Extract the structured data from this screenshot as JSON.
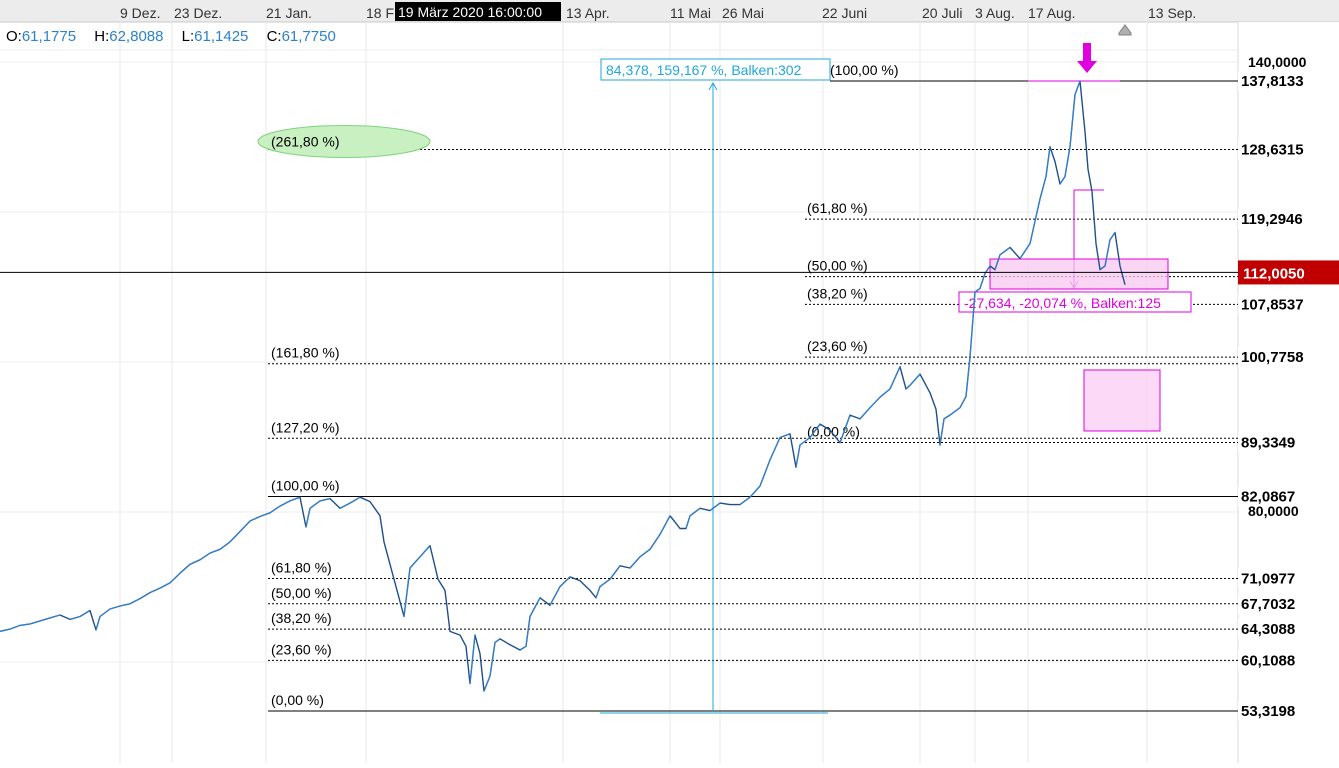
{
  "ohlc": {
    "o_label": "O:",
    "o_value": "61,1775",
    "h_label": "H:",
    "h_value": "62,8088",
    "l_label": "L:",
    "l_value": "61,1425",
    "c_label": "C:",
    "c_value": "61,7750"
  },
  "crosshair_label": "19 März 2020 16:00:00",
  "colors": {
    "price": "#1f4f8b",
    "price_up": "#2f86d6",
    "fib_magenta": "#e000e0",
    "measure_cyan": "#20a8d8",
    "last_price_bg": "#c00000",
    "ellipse_green": "#7fd37f"
  },
  "chart_data": {
    "type": "line",
    "title": "",
    "xlabel": "",
    "ylabel": "",
    "x_ticks": [
      "9 Dez.",
      "23 Dez.",
      "21 Jan.",
      "18 F",
      "13 Apr.",
      "11 Mai",
      "26 Mai",
      "22 Juni",
      "20 Juli",
      "3 Aug.",
      "17 Aug.",
      "13 Sep."
    ],
    "y_ticks": [
      "140,0000",
      "80,0000"
    ],
    "ylim": [
      50,
      142
    ],
    "grid": true,
    "last_price": "112,0050",
    "price_labels": [
      "137,8133",
      "128,6315",
      "119,2946",
      "107,8537",
      "100,7758",
      "89,3349",
      "82,0867",
      "71,0977",
      "67,7032",
      "64,3088",
      "60,1088",
      "53,3198"
    ],
    "fib_retracement_1": {
      "label_levels": [
        {
          "label": "(0,00 %)",
          "price": 53.3198
        },
        {
          "label": "(23,60 %)",
          "price": 60.1088
        },
        {
          "label": "(38,20 %)",
          "price": 64.3088
        },
        {
          "label": "(50,00 %)",
          "price": 67.7032
        },
        {
          "label": "(61,80 %)",
          "price": 71.0977
        },
        {
          "label": "(100,00 %)",
          "price": 82.0867
        },
        {
          "label": "(127,20 %)",
          "price": 89.9
        },
        {
          "label": "(161,80 %)",
          "price": 99.9
        },
        {
          "label": "(261,80 %)",
          "price": 128.6315
        }
      ]
    },
    "fib_retracement_2": {
      "label_levels": [
        {
          "label": "(0,00 %)",
          "price": 89.3349
        },
        {
          "label": "(23,60 %)",
          "price": 100.7758
        },
        {
          "label": "(38,20 %)",
          "price": 107.8537
        },
        {
          "label": "(50,00 %)",
          "price": 111.5741
        },
        {
          "label": "(61,80 %)",
          "price": 119.2946
        },
        {
          "label": "(100,00 %)",
          "price": 137.8133
        }
      ]
    },
    "measure_up": "84,378, 159,167 %, Balken:302",
    "measure_down": "-27,634, -20,074 %, Balken:125",
    "series": [
      {
        "x": [
          0,
          10,
          20,
          30,
          40,
          50,
          60,
          70,
          80,
          90,
          96,
          100,
          110,
          120,
          130,
          140,
          150,
          160,
          170,
          180,
          190,
          200,
          210,
          220,
          230,
          240,
          250,
          260,
          270,
          280,
          290,
          300,
          306,
          310,
          320,
          330,
          340,
          350,
          360,
          370,
          380,
          384,
          390,
          398,
          404,
          410,
          420,
          430,
          438,
          445,
          450,
          460,
          466,
          470,
          475,
          480,
          484,
          490,
          495,
          500,
          510,
          520,
          526,
          530,
          540,
          550,
          560,
          570,
          580,
          590,
          596,
          600,
          610,
          620,
          630,
          640,
          650,
          660,
          670,
          676,
          680,
          686,
          690,
          700,
          710,
          720,
          730,
          740,
          750,
          760,
          770,
          780,
          790,
          796,
          800,
          810,
          820,
          830,
          840,
          850,
          860,
          870,
          880,
          890,
          900,
          906,
          910,
          920,
          930,
          936,
          940,
          944,
          950,
          960,
          966,
          970,
          975,
          980,
          985,
          990,
          995,
          1000,
          1010,
          1020,
          1030,
          1040,
          1046,
          1050,
          1055,
          1060,
          1065,
          1070,
          1075,
          1080,
          1085,
          1088,
          1092,
          1096,
          1100,
          1105,
          1110,
          1115,
          1120,
          1125
        ],
        "y": [
          64.0,
          64.3,
          64.8,
          65.0,
          65.4,
          65.8,
          66.2,
          65.6,
          66.0,
          66.8,
          64.2,
          66.0,
          67.0,
          67.4,
          67.7,
          68.4,
          69.2,
          69.8,
          70.5,
          71.8,
          73.0,
          73.6,
          74.5,
          75.0,
          76.0,
          77.4,
          78.8,
          79.4,
          79.9,
          80.8,
          81.5,
          82.0,
          78.0,
          80.5,
          81.5,
          81.8,
          80.5,
          81.2,
          82.0,
          81.4,
          79.5,
          76.0,
          73.0,
          69.0,
          66.0,
          72.5,
          74.0,
          75.5,
          71.0,
          69.5,
          64.0,
          63.5,
          62.0,
          57.0,
          63.5,
          61.0,
          56.0,
          58.0,
          62.5,
          63.0,
          62.2,
          61.5,
          62.0,
          66.0,
          68.5,
          67.5,
          70.0,
          71.3,
          70.8,
          69.5,
          68.5,
          70.0,
          71.0,
          72.8,
          72.5,
          74.0,
          75.0,
          77.0,
          79.5,
          78.5,
          77.8,
          77.8,
          79.5,
          80.5,
          80.2,
          81.2,
          81.0,
          81.0,
          82.0,
          83.5,
          87.0,
          90.0,
          90.5,
          86.0,
          89.0,
          90.0,
          91.8,
          91.0,
          89.3,
          93.0,
          92.5,
          94.0,
          95.4,
          96.5,
          99.5,
          96.5,
          97.0,
          98.5,
          96.0,
          93.8,
          89.0,
          92.5,
          93.0,
          94.0,
          95.5,
          100.8,
          109.5,
          110.0,
          112.0,
          113.0,
          112.5,
          114.5,
          115.5,
          114.0,
          116.0,
          122.0,
          125.0,
          129.0,
          127.0,
          124.0,
          125.0,
          129.0,
          136.0,
          137.8,
          131.0,
          126.0,
          123.0,
          116.0,
          112.5,
          113.0,
          116.5,
          117.5,
          113.0,
          110.5
        ]
      }
    ]
  }
}
